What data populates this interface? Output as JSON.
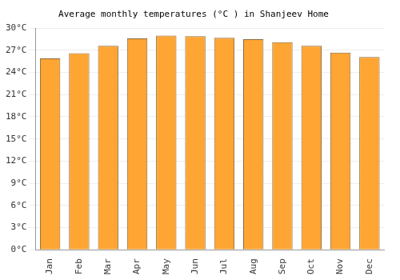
{
  "chart_data": {
    "type": "bar",
    "title": "Average monthly temperatures (°C ) in Shanjeev Home",
    "categories": [
      "Jan",
      "Feb",
      "Mar",
      "Apr",
      "May",
      "Jun",
      "Jul",
      "Aug",
      "Sep",
      "Oct",
      "Nov",
      "Dec"
    ],
    "values": [
      25.9,
      26.6,
      27.6,
      28.6,
      29.0,
      28.9,
      28.7,
      28.5,
      28.1,
      27.6,
      26.7,
      26.1
    ],
    "color": "#ffa533",
    "ylim": [
      0,
      30
    ],
    "yticks": [
      {
        "value": 0,
        "label": "0°C"
      },
      {
        "value": 3,
        "label": "3°C"
      },
      {
        "value": 6,
        "label": "6°C"
      },
      {
        "value": 9,
        "label": "9°C"
      },
      {
        "value": 12,
        "label": "12°C"
      },
      {
        "value": 15,
        "label": "15°C"
      },
      {
        "value": 18,
        "label": "18°C"
      },
      {
        "value": 21,
        "label": "21°C"
      },
      {
        "value": 24,
        "label": "24°C"
      },
      {
        "value": 27,
        "label": "27°C"
      },
      {
        "value": 30,
        "label": "30°C"
      }
    ],
    "grid": true
  }
}
